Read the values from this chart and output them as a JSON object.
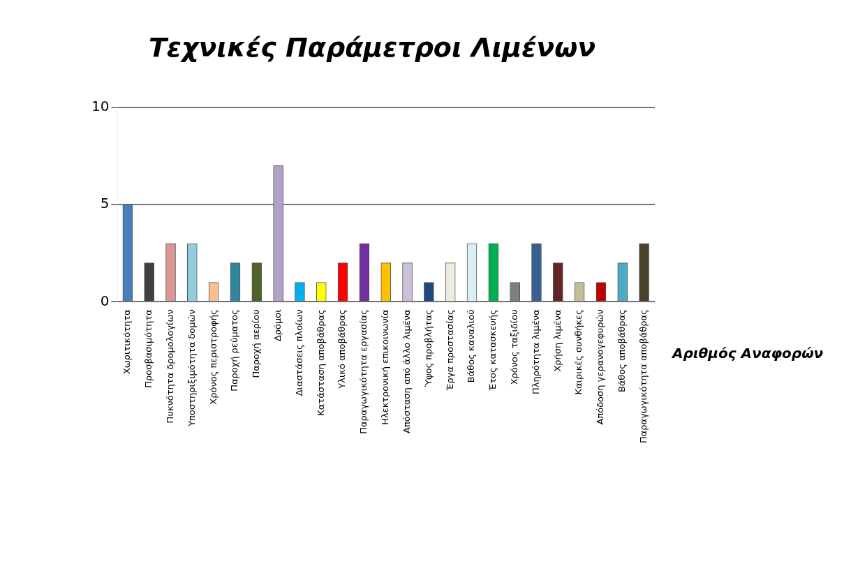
{
  "chart_data": {
    "type": "bar",
    "title": "Τεχνικές Παράμετροι Λιμένων",
    "xlabel": "Αριθμός Αναφορών",
    "categories": [
      "Χωριτικότητα",
      "Προσβασιμότητα",
      "Πυκνότητα δρομολογίων",
      "Υποστηριξιμότητα δομών",
      "Χρόνος περιστροφής",
      "Παροχή ρεύματος",
      "Παροχή αερίου",
      "Δρόμοι",
      "Διαστάσεις πλοίων",
      "Κατάσταση αποβάθρας",
      "Υλικό αποβάθρας",
      "Παραγωγικότητα εργασίας",
      "Ηλεκτρονική επικοινωνία",
      "Απόσταση από άλλο λιμένα",
      "Ύψος προβλήτας",
      "Έργα προστασίας",
      "Βάθος καναλιού",
      "Έτος κατασκευής",
      "Χρόνος ταξιδίου",
      "Πληρότητα λιμένα",
      "Χρήση λιμένα",
      "Καιρικές συνθήκες",
      "Απόδοση γερανογεφυρών",
      "Βάθος αποβάθρας",
      "Παραγωγικότητα αποβάθρας"
    ],
    "values": [
      5,
      2,
      3,
      3,
      1,
      2,
      2,
      7,
      1,
      1,
      2,
      3,
      2,
      2,
      1,
      2,
      3,
      3,
      1,
      3,
      2,
      1,
      1,
      2,
      3
    ],
    "colors": [
      "#4a7ebb",
      "#404040",
      "#d99694",
      "#93cddd",
      "#fac090",
      "#31859c",
      "#4f6228",
      "#b3a2c7",
      "#00b0f0",
      "#ffff00",
      "#ff0000",
      "#7030a0",
      "#ffc000",
      "#ccc1da",
      "#1f497d",
      "#eeece1",
      "#dbeef4",
      "#00b050",
      "#7f7f7f",
      "#376092",
      "#632523",
      "#c4bd97",
      "#c00000",
      "#4bacc6",
      "#494429"
    ],
    "ylim": [
      0,
      10
    ],
    "yticks": [
      0,
      5,
      10
    ],
    "grid": "y",
    "legend": false
  }
}
